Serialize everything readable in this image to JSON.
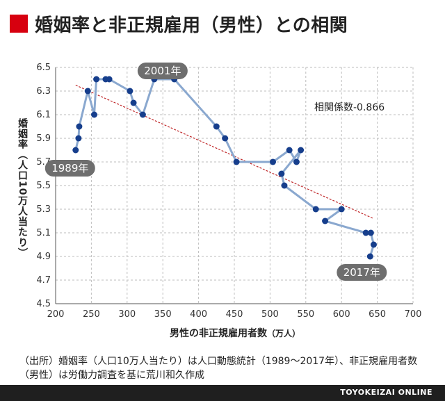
{
  "title": "婚姻率と非正規雇用（男性）との相関",
  "colors": {
    "accent": "#d7000f",
    "line": "#8aa8cf",
    "point": "#163e8c",
    "trend": "#c0282a",
    "annotation_bg": "#6e6e6e",
    "footer_bg": "#1f1f1f"
  },
  "chart_data": {
    "type": "scatter",
    "title": "",
    "xlabel": "男性の非正規雇用者数",
    "xlabel_unit": "（万人）",
    "ylabel": "婚姻率（人口10万人当たり）",
    "xlim": [
      200,
      700
    ],
    "ylim": [
      4.5,
      6.5
    ],
    "xticks": [
      200,
      250,
      300,
      350,
      400,
      450,
      500,
      550,
      600,
      650,
      700
    ],
    "yticks": [
      4.5,
      4.7,
      4.9,
      5.1,
      5.3,
      5.5,
      5.7,
      5.9,
      6.1,
      6.3,
      6.5
    ],
    "ytick_labels": [
      "4.5",
      "4.7",
      "4.9",
      "5.1",
      "5.3",
      "5.5",
      "5.7",
      "5.9",
      "6.1",
      "6.3",
      "6.5"
    ],
    "grid": true,
    "series": [
      {
        "points": [
          [
            228,
            5.8
          ],
          [
            232,
            5.9
          ],
          [
            233,
            6.0
          ],
          [
            245,
            6.3
          ],
          [
            254,
            6.1
          ],
          [
            257,
            6.4
          ],
          [
            270,
            6.4
          ],
          [
            275,
            6.4
          ],
          [
            304,
            6.3
          ],
          [
            309,
            6.2
          ],
          [
            322,
            6.1
          ],
          [
            338,
            6.4
          ],
          [
            366,
            6.4
          ],
          [
            425,
            6.0
          ],
          [
            437,
            5.9
          ],
          [
            453,
            5.7
          ],
          [
            504,
            5.7
          ],
          [
            527,
            5.8
          ],
          [
            537,
            5.7
          ],
          [
            543,
            5.8
          ],
          [
            516,
            5.6
          ],
          [
            520,
            5.5
          ],
          [
            564,
            5.3
          ],
          [
            600,
            5.3
          ],
          [
            577,
            5.2
          ],
          [
            634,
            5.1
          ],
          [
            641,
            5.1
          ],
          [
            645,
            5.0
          ],
          [
            640,
            4.9
          ]
        ]
      }
    ],
    "trendline": {
      "from": [
        228,
        6.35
      ],
      "to": [
        645,
        5.22
      ]
    },
    "annotations": [
      {
        "text": "1989年",
        "x": 228,
        "y": 5.8
      },
      {
        "text": "2001年",
        "x": 338,
        "y": 6.4
      },
      {
        "text": "2017年",
        "x": 640,
        "y": 4.9
      }
    ],
    "correlation_text": "相関係数-0.866"
  },
  "source_text": "（出所）婚姻率（人口10万人当たり）は人口動態統計（1989〜2017年）、非正規雇用者数（男性）は労働力調査を基に荒川和久作成",
  "brand": "TOYOKEIZAI ONLINE"
}
